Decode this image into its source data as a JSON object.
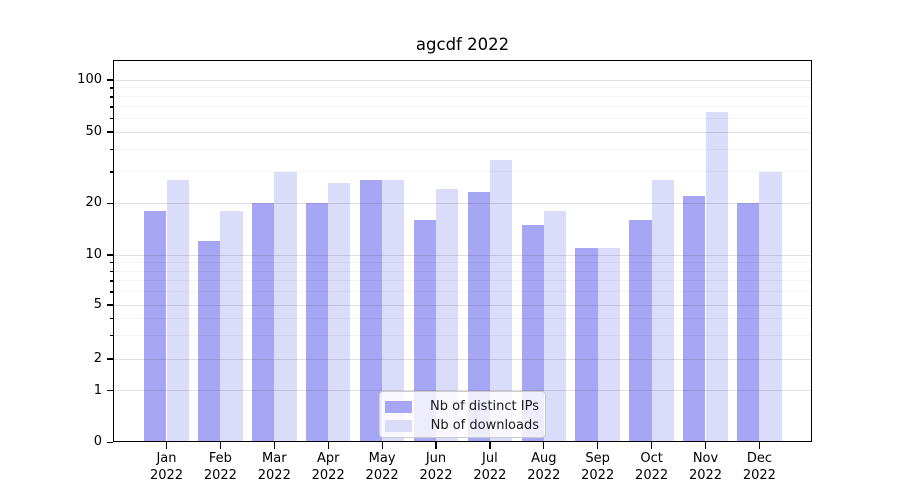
{
  "title": "agcdf 2022",
  "chart_data": {
    "type": "bar",
    "title": "agcdf 2022",
    "categories": [
      "Jan 2022",
      "Feb 2022",
      "Mar 2022",
      "Apr 2022",
      "May 2022",
      "Jun 2022",
      "Jul 2022",
      "Aug 2022",
      "Sep 2022",
      "Oct 2022",
      "Nov 2022",
      "Dec 2022"
    ],
    "series": [
      {
        "name": "Nb of distinct IPs",
        "color": "#a6a6f4",
        "values": [
          18,
          12,
          20,
          20,
          27,
          16,
          23,
          15,
          11,
          16,
          22,
          20
        ]
      },
      {
        "name": "Nb of downloads",
        "color": "#dbdbfa",
        "values": [
          27,
          18,
          30,
          26,
          27,
          24,
          35,
          18,
          11,
          27,
          65,
          30
        ]
      }
    ],
    "xlabel": "",
    "ylabel": "",
    "yscale": "symlog",
    "y_major_ticks": [
      0,
      1,
      2,
      5,
      10,
      20,
      50,
      100
    ],
    "y_minor_ticks": [
      3,
      4,
      6,
      7,
      8,
      9,
      30,
      40,
      60,
      70,
      80,
      90
    ],
    "ylim": [
      0,
      130
    ],
    "grid": true,
    "grid_drawn_above_bars": true,
    "legend_position": "lower center",
    "legend_entries": [
      "Nb of distinct IPs",
      "Nb of downloads"
    ]
  },
  "colors": {
    "bar_dark": "#a6a6f4",
    "bar_light": "#dbdbfa",
    "axis": "#000000",
    "grid": "#e2e2e2",
    "legend_border": "#cbcbcb",
    "background": "#ffffff",
    "text": "#000000"
  }
}
